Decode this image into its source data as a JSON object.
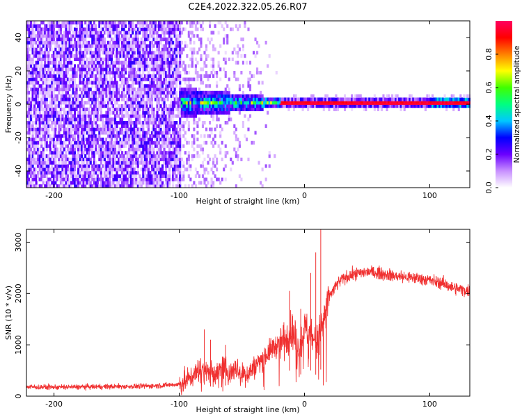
{
  "title": "C2E4.2022.322.05.26.R07",
  "chart_data": [
    {
      "type": "heatmap",
      "name": "spectrogram",
      "xlabel": "Height of straight line (km)",
      "ylabel": "Frequency (Hz)",
      "xlim": [
        -222,
        132
      ],
      "ylim": [
        -50,
        50
      ],
      "xticks": [
        -200,
        -100,
        0,
        100
      ],
      "xtick_labels": [
        "-200",
        "-100",
        "0",
        "100"
      ],
      "yticks": [
        -40,
        -20,
        0,
        20,
        40
      ],
      "ytick_labels": [
        "-40",
        "-20",
        "0",
        "20",
        "40"
      ],
      "description_regions": [
        {
          "x_range": [
            -222,
            -100
          ],
          "content": "broadband noise, amplitude 0.05-0.25 over all frequencies"
        },
        {
          "x_range": [
            -100,
            -20
          ],
          "content": "cluster centered near 0 Hz narrowing from about +/-8 Hz to +/-3 Hz, amplitude 0.2-0.6"
        },
        {
          "x_range": [
            -20,
            132
          ],
          "content": "narrow line at 0 Hz, amplitude about 0.95"
        }
      ],
      "colorbar": {
        "label": "Normalized spectral amplitude",
        "range": [
          0,
          1
        ],
        "ticks": [
          0.0,
          0.2,
          0.4,
          0.6,
          0.8
        ],
        "tick_labels": [
          "0.0",
          "0.2",
          "0.4",
          "0.6",
          "0.8"
        ],
        "colors": [
          "#ffffff",
          "#c890ff",
          "#6a00ff",
          "#0000ff",
          "#00c8ff",
          "#00ff80",
          "#40ff00",
          "#ffff00",
          "#ff8000",
          "#ff0000",
          "#ff0060"
        ]
      }
    },
    {
      "type": "line",
      "name": "snr",
      "xlabel": "Height of straight line (km)",
      "ylabel": "SNR (10 * v/v)",
      "xlim": [
        -222,
        132
      ],
      "ylim": [
        0,
        3250
      ],
      "xticks": [
        -200,
        -100,
        0,
        100
      ],
      "xtick_labels": [
        "-200",
        "-100",
        "0",
        "100"
      ],
      "yticks": [
        0,
        1000,
        2000,
        3000
      ],
      "ytick_labels": [
        "0",
        "1000",
        "2000",
        "3000"
      ],
      "color": "#f03030",
      "series": [
        {
          "name": "SNR",
          "x": [
            -222,
            -200,
            -180,
            -160,
            -140,
            -120,
            -100,
            -95,
            -90,
            -85,
            -80,
            -75,
            -70,
            -65,
            -60,
            -55,
            -50,
            -45,
            -40,
            -35,
            -30,
            -25,
            -20,
            -15,
            -10,
            -5,
            0,
            5,
            10,
            15,
            20,
            25,
            30,
            40,
            50,
            60,
            70,
            80,
            90,
            100,
            110,
            120,
            132
          ],
          "y": [
            180,
            175,
            180,
            185,
            190,
            200,
            230,
            290,
            380,
            520,
            560,
            470,
            430,
            580,
            430,
            580,
            420,
            450,
            560,
            700,
            820,
            950,
            1000,
            1150,
            1300,
            900,
            1300,
            1250,
            1000,
            1500,
            1950,
            2150,
            2280,
            2380,
            2420,
            2400,
            2350,
            2320,
            2300,
            2260,
            2200,
            2100,
            2050
          ]
        }
      ],
      "spikes": [
        {
          "x": -80,
          "y": 1300
        },
        {
          "x": -75,
          "y": 1100
        },
        {
          "x": -63,
          "y": 1000
        },
        {
          "x": -12,
          "y": 2050
        },
        {
          "x": -3,
          "y": 1700
        },
        {
          "x": 5,
          "y": 2400
        },
        {
          "x": 9,
          "y": 2800
        },
        {
          "x": 13,
          "y": 3250
        }
      ]
    }
  ]
}
